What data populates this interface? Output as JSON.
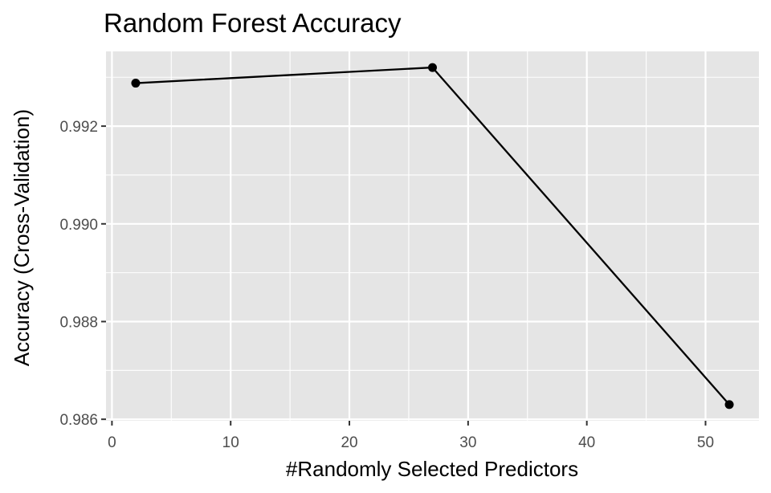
{
  "chart_data": {
    "type": "line",
    "title": "Random Forest Accuracy",
    "xlabel": "#Randomly Selected Predictors",
    "ylabel": "Accuracy (Cross-Validation)",
    "x": [
      2,
      27,
      52
    ],
    "series": [
      {
        "name": "Accuracy",
        "values": [
          0.99288,
          0.9932,
          0.9863
        ]
      }
    ],
    "xlim": [
      -0.5,
      54.5
    ],
    "ylim": [
      0.98597,
      0.99353
    ],
    "xticks": [
      0,
      10,
      20,
      30,
      40,
      50
    ],
    "xtick_labels": [
      "0",
      "10",
      "20",
      "30",
      "40",
      "50"
    ],
    "xminor": [
      5,
      15,
      25,
      35,
      45
    ],
    "yticks": [
      0.986,
      0.988,
      0.99,
      0.992
    ],
    "ytick_labels": [
      "0.986",
      "0.988",
      "0.990",
      "0.992"
    ],
    "yminor": [
      0.987,
      0.989,
      0.991,
      0.993
    ],
    "grid": true,
    "colors": {
      "panel": "#e5e5e5",
      "grid": "#ffffff",
      "line": "#000000",
      "point": "#000000"
    }
  }
}
